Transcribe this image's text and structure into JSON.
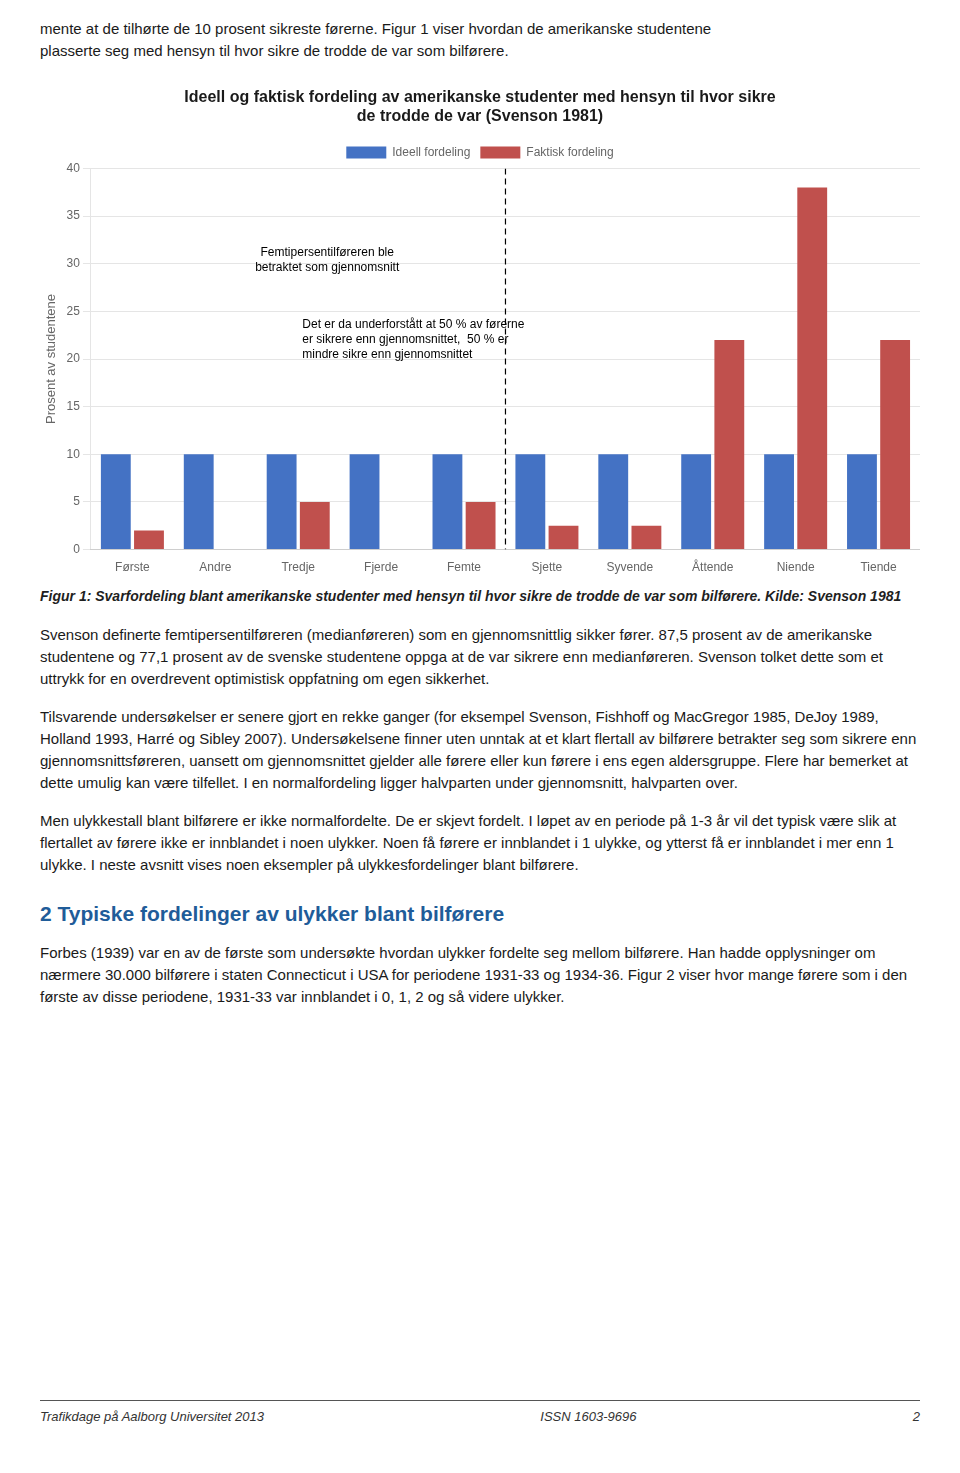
{
  "top_text": "mente at de tilhørte de 10 prosent sikreste førerne. Figur 1 viser hvordan de amerikanske studentene\nplasserte seg med hensyn til hvor sikre de trodde de var som bilførere.",
  "chart_data": {
    "type": "bar",
    "title": "Ideell og faktisk fordeling av amerikanske studenter med hensyn til hvor sikre\nde trodde de var (Svenson 1981)",
    "y_label": "Prosent av studentene",
    "categories": [
      "Første",
      "Andre",
      "Tredje",
      "Fjerde",
      "Femte",
      "Sjette",
      "Syvende",
      "Åttende",
      "Niende",
      "Tiende"
    ],
    "series": [
      {
        "name": "Ideell fordeling",
        "color": "#4472C4",
        "values": [
          10,
          10,
          10,
          10,
          10,
          10,
          10,
          10,
          10,
          10
        ]
      },
      {
        "name": "Faktisk fordeling",
        "color": "#C0504D",
        "values": [
          2,
          0,
          5,
          0,
          5,
          2.5,
          2.5,
          22,
          38,
          22
        ]
      }
    ],
    "ylim": [
      0,
      40
    ],
    "yticks": [
      0,
      5,
      10,
      15,
      20,
      25,
      30,
      35,
      40
    ],
    "grid": true,
    "legend": "top",
    "reference_line": {
      "x": 4.5,
      "line_style": "dashed",
      "color": "#000000"
    },
    "annotations": [
      "Femtipersentilføreren ble\nbetraktet som gjennomsnitt",
      "Det er da underforstått at 50 % av førerne\ner sikrere enn gjennomsnittet,  50 % er\nmindre sikre enn gjennomsnittet"
    ]
  },
  "caption": "Figur 1: Svarfordeling blant amerikanske studenter med hensyn til hvor sikre de trodde de var som bilførere. Kilde: Svenson 1981",
  "paragraphs_before_section": [
    "Svenson definerte femtipersentilføreren (medianføreren) som en gjennomsnittlig sikker fører. 87,5 prosent av de amerikanske studentene og 77,1 prosent av de svenske studentene oppga at de var sikrere enn medianføreren. Svenson tolket dette som et uttrykk for en overdrevent optimistisk oppfatning om egen sikkerhet.",
    "Tilsvarende undersøkelser er senere gjort en rekke ganger (for eksempel  Svenson, Fishhoff og MacGregor 1985, DeJoy 1989, Holland 1993, Harré og Sibley 2007). Undersøkelsene finner uten unntak at et klart flertall av bilførere betrakter seg som sikrere enn gjennomsnittsføreren, uansett om gjennomsnittet gjelder alle førere eller kun førere i ens egen aldersgruppe. Flere har bemerket at dette umulig kan være tilfellet. I en normalfordeling ligger halvparten under gjennomsnitt, halvparten over.",
    "Men ulykkestall blant bilførere er ikke normalfordelte. De er skjevt fordelt. I løpet av en periode på 1-3 år vil det typisk være slik at flertallet av førere ikke er innblandet i noen ulykker. Noen få førere er innblandet i 1 ulykke, og ytterst få er innblandet i mer enn 1 ulykke. I neste avsnitt vises noen eksempler på ulykkesfordelinger blant bilførere."
  ],
  "section_title": "2 Typiske fordelinger av ulykker blant bilførere",
  "paragraphs_after_section": [
    "Forbes (1939) var en av de første som undersøkte hvordan ulykker fordelte seg mellom bilførere. Han hadde opplysninger om nærmere 30.000 bilførere i staten Connecticut i USA for periodene 1931-33 og 1934-36. Figur 2 viser hvor mange førere som i den første av disse periodene, 1931-33 var innblandet i 0, 1, 2 og så videre ulykker."
  ],
  "footer": [
    "Trafikdage på Aalborg Universitet 2013",
    "ISSN 1603-9696",
    "2"
  ]
}
